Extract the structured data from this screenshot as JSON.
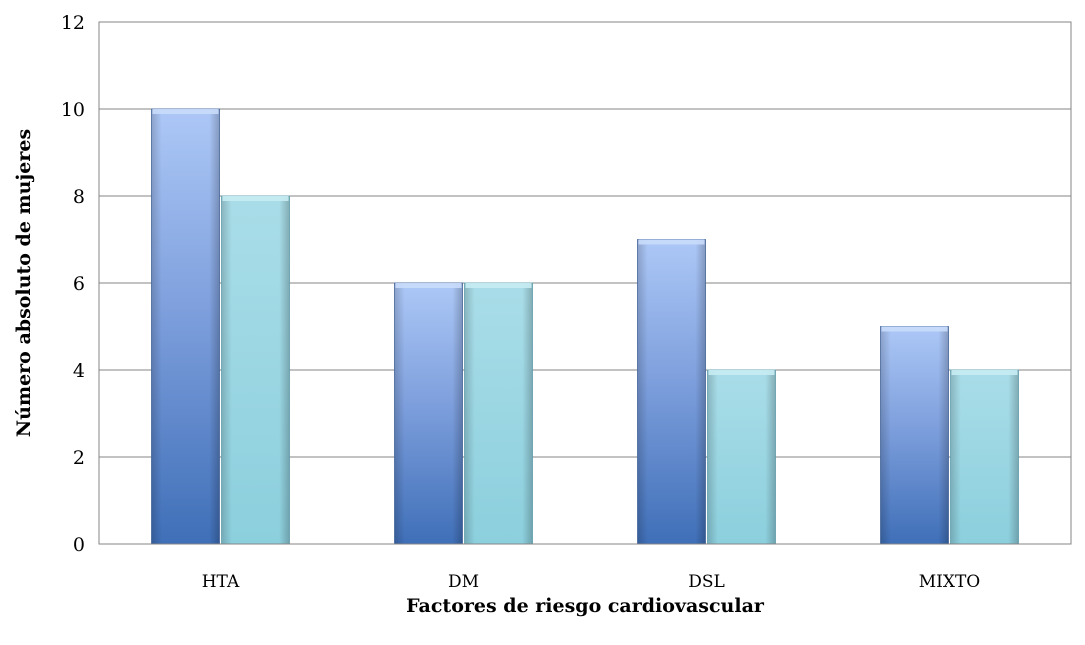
{
  "chart_data": {
    "type": "bar",
    "title": "",
    "xlabel": "Factores de riesgo cardiovascular",
    "ylabel": "Número absoluto de mujeres",
    "categories": [
      "HTA",
      "DM",
      "DSL",
      "MIXTO"
    ],
    "series": [
      {
        "values": [
          10,
          6,
          7,
          5
        ],
        "color": "#4f81bd"
      },
      {
        "values": [
          8,
          6,
          4,
          4
        ],
        "color": "#93cddd"
      }
    ],
    "ylim": [
      0,
      12
    ],
    "yticks": [
      "0",
      "2",
      "4",
      "6",
      "8",
      "10",
      "12"
    ],
    "grid": true,
    "legend": "none"
  }
}
